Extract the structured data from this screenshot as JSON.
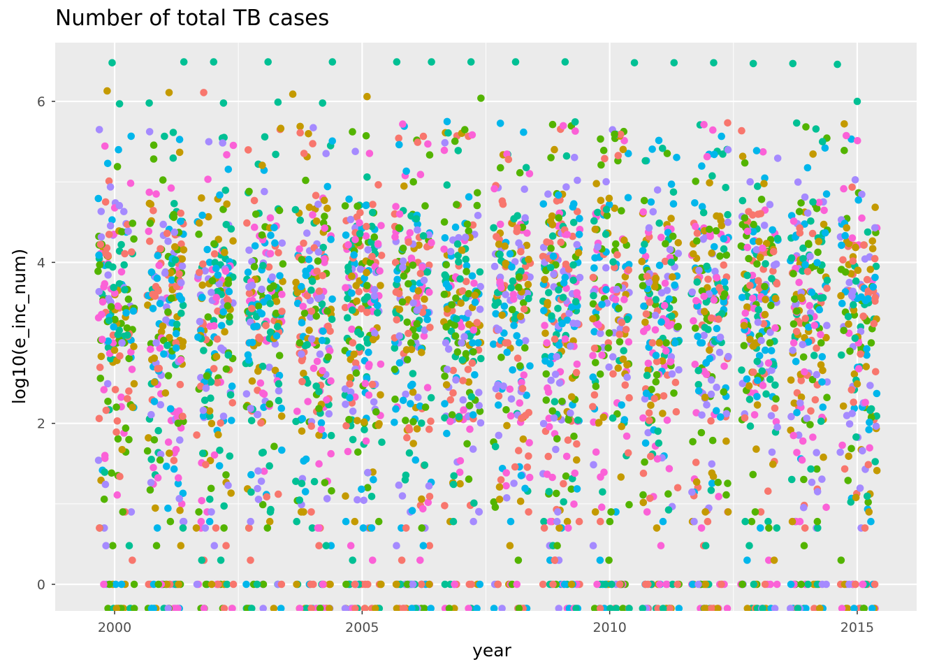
{
  "chart_data": {
    "type": "scatter",
    "title": "Number of total TB cases",
    "xlabel": "year",
    "ylabel": "log10(e_inc_num)",
    "xlim": [
      1998.8,
      2016.2
    ],
    "ylim": [
      -0.33,
      6.73
    ],
    "x_ticks": [
      2000,
      2005,
      2010,
      2015
    ],
    "x_tick_labels": [
      "2000",
      "2005",
      "2010",
      "2015"
    ],
    "y_ticks": [
      0,
      2,
      4,
      6
    ],
    "y_tick_labels": [
      "0",
      "2",
      "4",
      "6"
    ],
    "grid": true,
    "legend": "none",
    "panel_color": "#ebebeb",
    "grid_color": "#ffffff",
    "series_colors": [
      "#f8766d",
      "#c49a00",
      "#53b400",
      "#00c094",
      "#00b6eb",
      "#a58aff",
      "#fb61d7"
    ],
    "n_points_approx": 3600,
    "point_groups": [
      {
        "x": 1999.85,
        "y": 6.13,
        "color": "#c49a00"
      },
      {
        "x": 1999.95,
        "y": 6.48,
        "color": "#00c094"
      },
      {
        "x": 2000.1,
        "y": 5.97,
        "color": "#00c094"
      },
      {
        "x": 2000.7,
        "y": 5.98,
        "color": "#00c094"
      },
      {
        "x": 2001.1,
        "y": 6.11,
        "color": "#c49a00"
      },
      {
        "x": 2001.4,
        "y": 6.49,
        "color": "#00c094"
      },
      {
        "x": 2001.8,
        "y": 6.11,
        "color": "#f8766d"
      },
      {
        "x": 2002.0,
        "y": 6.49,
        "color": "#00c094"
      },
      {
        "x": 2002.2,
        "y": 5.98,
        "color": "#00c094"
      },
      {
        "x": 2003.1,
        "y": 6.49,
        "color": "#00c094"
      },
      {
        "x": 2003.3,
        "y": 5.99,
        "color": "#00c094"
      },
      {
        "x": 2003.6,
        "y": 6.09,
        "color": "#c49a00"
      },
      {
        "x": 2004.4,
        "y": 6.49,
        "color": "#00c094"
      },
      {
        "x": 2004.2,
        "y": 5.98,
        "color": "#00c094"
      },
      {
        "x": 2005.7,
        "y": 6.49,
        "color": "#00c094"
      },
      {
        "x": 2005.1,
        "y": 6.06,
        "color": "#c49a00"
      },
      {
        "x": 2006.4,
        "y": 6.49,
        "color": "#00c094"
      },
      {
        "x": 2007.2,
        "y": 6.49,
        "color": "#00c094"
      },
      {
        "x": 2007.4,
        "y": 6.04,
        "color": "#53b400"
      },
      {
        "x": 2008.1,
        "y": 6.49,
        "color": "#00c094"
      },
      {
        "x": 2009.1,
        "y": 6.49,
        "color": "#00c094"
      },
      {
        "x": 2010.5,
        "y": 6.48,
        "color": "#00c094"
      },
      {
        "x": 2011.3,
        "y": 6.48,
        "color": "#00c094"
      },
      {
        "x": 2012.1,
        "y": 6.48,
        "color": "#00c094"
      },
      {
        "x": 2012.9,
        "y": 6.47,
        "color": "#00c094"
      },
      {
        "x": 2013.7,
        "y": 6.47,
        "color": "#00c094"
      },
      {
        "x": 2014.6,
        "y": 6.46,
        "color": "#00c094"
      },
      {
        "x": 2015.0,
        "y": 6.0,
        "color": "#00c094"
      }
    ]
  }
}
